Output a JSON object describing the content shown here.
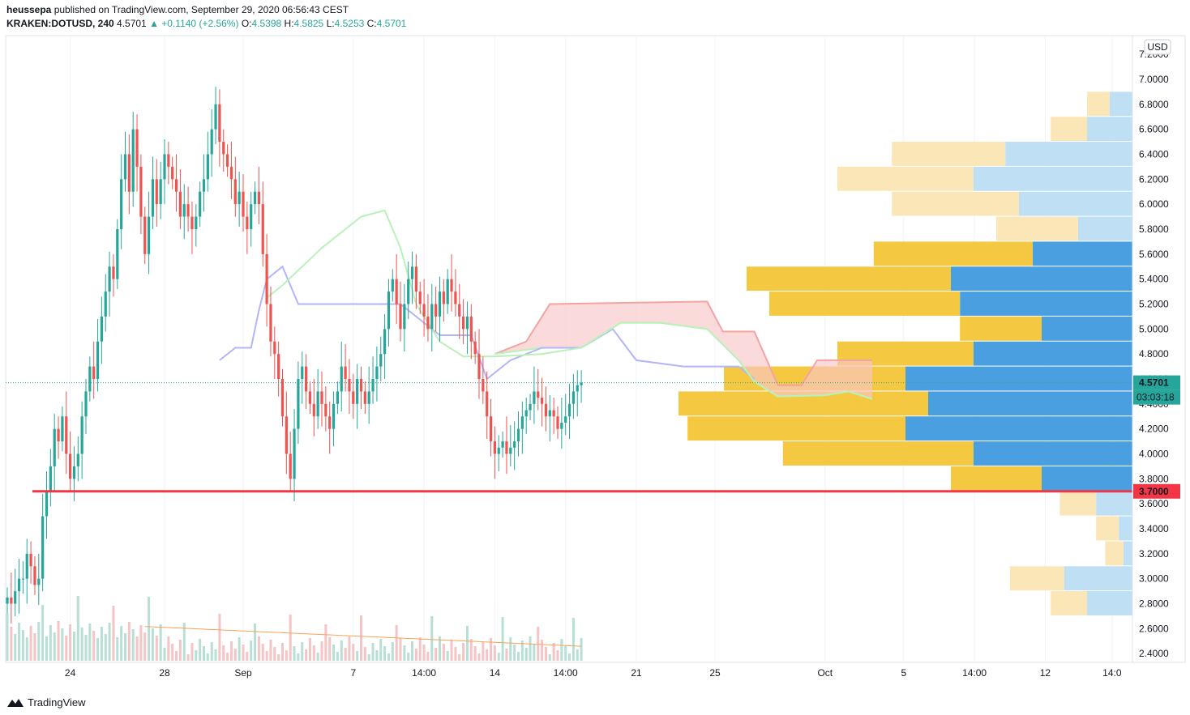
{
  "header": {
    "author": "heussepa",
    "published_text": "published on TradingView.com, September 29, 2020 06:56:43 CEST",
    "symbol": "KRAKEN:DOTUSD, 240",
    "last": "4.5701",
    "change": "▲ +0.1140 (+2.56%)",
    "o_label": "O:",
    "o_value": "4.5398",
    "h_label": "H:",
    "h_value": "4.5825",
    "l_label": "L:",
    "l_value": "4.5253",
    "c_label": "C:",
    "c_value": "4.5701"
  },
  "footer": {
    "brand": "TradingView"
  },
  "colors": {
    "up": "#26a69a",
    "down": "#ef5350",
    "hline": "#f23645",
    "tenkan": "#b2b5f7",
    "kijun_green": "#b9f2b9",
    "cloud_red": "#f7c6c6",
    "volume_up": "#b7dfd5",
    "volume_down": "#f5c4c4",
    "vol_ma": "#f7a35c",
    "vp_blue": "#4a9fe0",
    "vp_yellow": "#f5c842",
    "vp_light_blue": "#bfdff5",
    "vp_light_yellow": "#fbe6b8"
  },
  "chart_data": {
    "type": "candlestick",
    "currency_label": "USD",
    "last_price_label": "4.5701",
    "countdown_label": "03:03:18",
    "hline_label": "3.7000",
    "hline_value": 3.7,
    "last_price": 4.5701,
    "ylim": [
      2.33,
      7.35
    ],
    "y_ticks": [
      "7.2000",
      "7.0000",
      "6.8000",
      "6.6000",
      "6.4000",
      "6.2000",
      "6.0000",
      "5.8000",
      "5.6000",
      "5.4000",
      "5.2000",
      "5.0000",
      "4.8000",
      "4.6000",
      "4.4000",
      "4.2000",
      "4.0000",
      "3.8000",
      "3.6000",
      "3.4000",
      "3.2000",
      "3.0000",
      "2.8000",
      "2.6000",
      "2.4000"
    ],
    "y_tick_values": [
      7.2,
      7.0,
      6.8,
      6.6,
      6.4,
      6.2,
      6.0,
      5.8,
      5.6,
      5.4,
      5.2,
      5.0,
      4.8,
      4.6,
      4.4,
      4.2,
      4.0,
      3.8,
      3.6,
      3.4,
      3.2,
      3.0,
      2.8,
      2.6,
      2.4
    ],
    "x_ticks": [
      "24",
      "28",
      "Sep",
      "7",
      "14:00",
      "14",
      "14:00",
      "21",
      "25",
      "Oct",
      "5",
      "14:00",
      "12",
      "14:0"
    ],
    "x_tick_index": [
      16,
      40,
      60,
      88,
      106,
      124,
      142,
      160,
      180,
      208,
      228,
      246,
      264,
      281
    ],
    "close_path": [
      2.85,
      2.8,
      2.9,
      3.0,
      3.0,
      3.2,
      3.1,
      2.95,
      3.0,
      3.5,
      3.7,
      3.9,
      4.2,
      4.1,
      4.3,
      4.0,
      3.8,
      3.9,
      4.0,
      4.3,
      4.5,
      4.7,
      4.6,
      4.9,
      5.1,
      5.3,
      5.5,
      5.4,
      5.8,
      6.2,
      6.4,
      6.1,
      6.6,
      6.3,
      5.9,
      5.6,
      5.9,
      6.2,
      6.0,
      6.2,
      6.4,
      6.3,
      6.2,
      6.1,
      5.9,
      6.0,
      5.9,
      5.8,
      5.9,
      6.1,
      6.2,
      6.4,
      6.6,
      6.8,
      6.5,
      6.4,
      6.3,
      6.2,
      6.0,
      6.1,
      5.9,
      5.8,
      6.0,
      6.1,
      6.0,
      5.6,
      5.2,
      4.9,
      4.8,
      4.6,
      4.3,
      4.0,
      3.8,
      4.2,
      4.6,
      4.7,
      4.5,
      4.4,
      4.3,
      4.5,
      4.4,
      4.3,
      4.2,
      4.4,
      4.5,
      4.7,
      4.6,
      4.5,
      4.4,
      4.6,
      4.5,
      4.4,
      4.5,
      4.6,
      4.7,
      4.8,
      5.0,
      5.3,
      5.4,
      5.2,
      5.0,
      5.2,
      5.4,
      5.5,
      5.3,
      5.2,
      5.1,
      5.0,
      5.2,
      5.1,
      5.3,
      5.2,
      5.4,
      5.3,
      5.2,
      5.1,
      5.0,
      5.1,
      4.9,
      4.8,
      4.6,
      4.5,
      4.3,
      4.1,
      4.0,
      4.05,
      4.1,
      4.0,
      4.05,
      4.1,
      4.2,
      4.3,
      4.35,
      4.4,
      4.5,
      4.45,
      4.4,
      4.3,
      4.35,
      4.3,
      4.2,
      4.25,
      4.3,
      4.4,
      4.5,
      4.55,
      4.57
    ],
    "tenkan_path": [
      [
        54,
        4.75
      ],
      [
        58,
        4.85
      ],
      [
        62,
        4.85
      ],
      [
        64,
        5.15
      ],
      [
        66,
        5.4
      ],
      [
        70,
        5.5
      ],
      [
        74,
        5.2
      ],
      [
        90,
        5.2
      ],
      [
        100,
        5.2
      ],
      [
        106,
        5.05
      ],
      [
        110,
        4.95
      ],
      [
        118,
        4.95
      ],
      [
        122,
        4.6
      ],
      [
        128,
        4.75
      ],
      [
        136,
        4.85
      ],
      [
        146,
        4.85
      ],
      [
        154,
        5.0
      ],
      [
        160,
        4.75
      ],
      [
        172,
        4.7
      ],
      [
        182,
        4.7
      ],
      [
        186,
        4.7
      ],
      [
        190,
        4.6
      ]
    ],
    "kijun_path": [
      [
        66,
        5.25
      ],
      [
        70,
        5.35
      ],
      [
        80,
        5.65
      ],
      [
        86,
        5.8
      ],
      [
        90,
        5.9
      ],
      [
        96,
        5.95
      ],
      [
        100,
        5.65
      ],
      [
        104,
        5.2
      ],
      [
        110,
        4.9
      ],
      [
        116,
        4.78
      ],
      [
        124,
        4.78
      ],
      [
        136,
        4.8
      ],
      [
        146,
        4.85
      ],
      [
        156,
        5.05
      ],
      [
        166,
        5.05
      ],
      [
        178,
        5.0
      ],
      [
        186,
        4.75
      ],
      [
        190,
        4.58
      ],
      [
        196,
        4.46
      ],
      [
        208,
        4.47
      ],
      [
        214,
        4.5
      ],
      [
        220,
        4.44
      ]
    ],
    "cloud_top": [
      [
        124,
        4.8
      ],
      [
        132,
        4.9
      ],
      [
        138,
        5.2
      ],
      [
        178,
        5.22
      ],
      [
        182,
        4.98
      ],
      [
        190,
        4.98
      ],
      [
        196,
        4.55
      ],
      [
        202,
        4.55
      ],
      [
        206,
        4.75
      ],
      [
        220,
        4.75
      ]
    ],
    "cloud_bottom": [
      [
        124,
        4.8
      ],
      [
        136,
        4.85
      ],
      [
        146,
        4.85
      ],
      [
        156,
        5.05
      ],
      [
        166,
        5.05
      ],
      [
        178,
        5.0
      ],
      [
        186,
        4.75
      ],
      [
        190,
        4.58
      ],
      [
        196,
        4.46
      ],
      [
        208,
        4.47
      ],
      [
        214,
        4.5
      ],
      [
        220,
        4.44
      ]
    ],
    "volume_profile": [
      [
        6.8,
        0.05,
        0.05,
        1
      ],
      [
        6.6,
        0.1,
        0.08,
        1
      ],
      [
        6.4,
        0.28,
        0.25,
        1
      ],
      [
        6.2,
        0.35,
        0.3,
        1
      ],
      [
        6.0,
        0.25,
        0.28,
        1
      ],
      [
        5.8,
        0.12,
        0.18,
        1
      ],
      [
        5.6,
        0.22,
        0.35,
        0
      ],
      [
        5.4,
        0.4,
        0.45,
        0
      ],
      [
        5.2,
        0.38,
        0.42,
        0
      ],
      [
        5.0,
        0.2,
        0.18,
        0
      ],
      [
        4.8,
        0.35,
        0.3,
        0
      ],
      [
        4.6,
        0.5,
        0.4,
        0
      ],
      [
        4.4,
        0.45,
        0.55,
        0
      ],
      [
        4.2,
        0.5,
        0.48,
        0
      ],
      [
        4.0,
        0.35,
        0.42,
        0
      ],
      [
        3.8,
        0.2,
        0.2,
        0
      ],
      [
        3.6,
        0.08,
        0.08,
        1
      ],
      [
        3.4,
        0.03,
        0.05,
        1
      ],
      [
        3.2,
        0.02,
        0.04,
        1
      ],
      [
        3.0,
        0.15,
        0.12,
        1
      ],
      [
        2.8,
        0.1,
        0.08,
        1
      ]
    ]
  }
}
